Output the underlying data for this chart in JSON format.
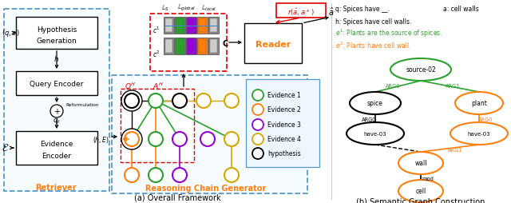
{
  "fig_width": 6.4,
  "fig_height": 2.55,
  "bg_color": "#ffffff",
  "title_a": "(a) Overall Framework",
  "title_b": "(b) Semantic Graph Construction",
  "colors": {
    "green": "#2ca02c",
    "orange": "#ff7f0e",
    "purple": "#9400d3",
    "yellow_gold": "#d4a800",
    "black": "#000000",
    "red": "#dd0000",
    "dashed_blue": "#5599cc",
    "gray": "#888888"
  },
  "legend_items": [
    {
      "label": "Evidence 1",
      "color": "#2ca02c"
    },
    {
      "label": "Evidence 2",
      "color": "#ff7f0e"
    },
    {
      "label": "Evidence 3",
      "color": "#9400d3"
    },
    {
      "label": "Evidence 4",
      "color": "#d4a800"
    },
    {
      "label": "hypothesis",
      "color": "#000000"
    }
  ]
}
